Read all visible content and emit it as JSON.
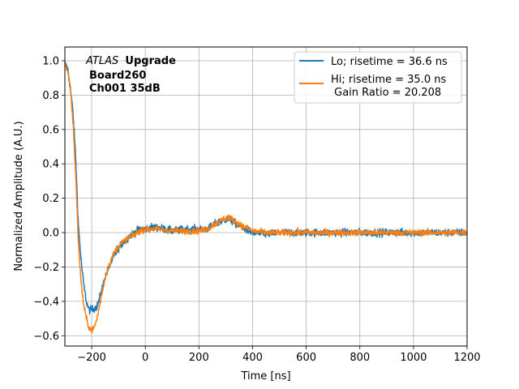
{
  "chart_data": {
    "type": "line",
    "xlabel": "Time [ns]",
    "ylabel": "Normalized Amplitude (A.U.)",
    "xlim": [
      -300,
      1200
    ],
    "ylim": [
      -0.66,
      1.08
    ],
    "x_ticks": [
      -200,
      0,
      200,
      400,
      600,
      800,
      1000,
      1200
    ],
    "y_ticks": [
      -0.6,
      -0.4,
      -0.2,
      0.0,
      0.2,
      0.4,
      0.6,
      0.8,
      1.0
    ],
    "x_tick_labels": [
      "−200",
      "0",
      "200",
      "400",
      "600",
      "800",
      "1000",
      "1200"
    ],
    "y_tick_labels": [
      "−0.6",
      "−0.4",
      "−0.2",
      "0.0",
      "0.2",
      "0.4",
      "0.6",
      "0.8",
      "1.0"
    ],
    "grid": true,
    "legend_position": "top-right",
    "annotation": {
      "italic": "ATLAS",
      "bold": "Upgrade",
      "line2": "Board260",
      "line3": "Ch001 35dB"
    },
    "series": [
      {
        "name": "Lo; risetime = 36.6 ns",
        "color": "#1f77b4",
        "noise": 0.022,
        "x": [
          -300,
          -290,
          -280,
          -270,
          -260,
          -250,
          -240,
          -230,
          -220,
          -210,
          -200,
          -190,
          -180,
          -170,
          -160,
          -150,
          -140,
          -130,
          -120,
          -110,
          -100,
          -90,
          -80,
          -70,
          -60,
          -50,
          -40,
          -30,
          -20,
          0,
          20,
          50,
          100,
          150,
          200,
          230,
          260,
          290,
          310,
          330,
          360,
          400,
          450,
          500,
          600,
          700,
          800,
          900,
          1000,
          1100,
          1200
        ],
        "y": [
          0.98,
          0.96,
          0.85,
          0.7,
          0.45,
          0.05,
          -0.15,
          -0.3,
          -0.4,
          -0.45,
          -0.45,
          -0.44,
          -0.43,
          -0.38,
          -0.32,
          -0.26,
          -0.22,
          -0.18,
          -0.15,
          -0.12,
          -0.09,
          -0.07,
          -0.05,
          -0.04,
          -0.02,
          -0.01,
          0.0,
          0.01,
          0.02,
          0.02,
          0.03,
          0.03,
          0.01,
          0.02,
          0.02,
          0.02,
          0.05,
          0.07,
          0.08,
          0.06,
          0.03,
          0.0,
          -0.01,
          0.0,
          0.0,
          0.0,
          0.0,
          0.0,
          0.0,
          0.0,
          0.0
        ]
      },
      {
        "name": "Hi; risetime = 35.0 ns\n Gain Ratio = 20.208",
        "color": "#ff7f0e",
        "noise": 0.018,
        "x": [
          -300,
          -290,
          -280,
          -270,
          -260,
          -250,
          -240,
          -230,
          -220,
          -210,
          -200,
          -190,
          -180,
          -170,
          -160,
          -150,
          -140,
          -130,
          -120,
          -110,
          -100,
          -90,
          -80,
          -70,
          -60,
          -50,
          -40,
          -30,
          -20,
          0,
          20,
          50,
          100,
          150,
          200,
          230,
          260,
          290,
          310,
          330,
          360,
          400,
          450,
          500,
          600,
          700,
          800,
          900,
          1000,
          1100,
          1200
        ],
        "y": [
          0.99,
          0.94,
          0.85,
          0.65,
          0.35,
          -0.05,
          -0.28,
          -0.42,
          -0.5,
          -0.55,
          -0.57,
          -0.55,
          -0.5,
          -0.42,
          -0.34,
          -0.26,
          -0.21,
          -0.17,
          -0.13,
          -0.1,
          -0.08,
          -0.06,
          -0.05,
          -0.04,
          -0.03,
          -0.02,
          -0.01,
          0.0,
          0.01,
          0.02,
          0.02,
          0.02,
          0.01,
          0.01,
          0.01,
          0.02,
          0.05,
          0.08,
          0.09,
          0.07,
          0.04,
          0.01,
          0.0,
          0.0,
          0.0,
          0.0,
          0.0,
          0.0,
          0.0,
          0.0,
          0.0
        ]
      }
    ]
  }
}
